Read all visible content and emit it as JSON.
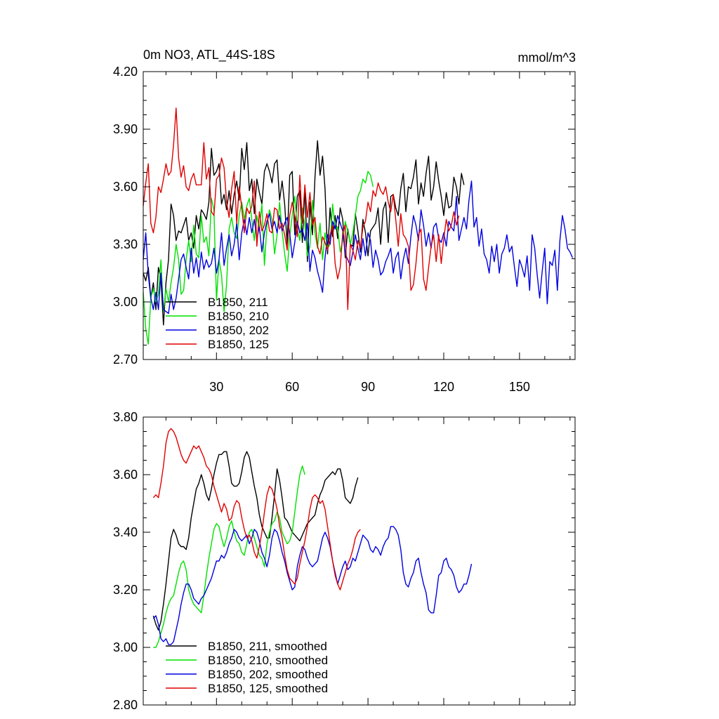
{
  "chart_data": [
    {
      "type": "line",
      "title": "0m NO3, ATL_44S-18S",
      "units": "mmol/m^3",
      "xlim": [
        1,
        172
      ],
      "ylim": [
        2.7,
        4.2
      ],
      "xticks": [
        30,
        60,
        90,
        120,
        150
      ],
      "yticks": [
        "2.70",
        "3.00",
        "3.30",
        "3.60",
        "3.90",
        "4.20"
      ],
      "legend_position": "bottom-left",
      "series": [
        {
          "name": "B1850, 211",
          "color": "#000000",
          "x_start": 1,
          "values": [
            3.15,
            3.11,
            3.18,
            3.02,
            3.1,
            2.96,
            3.18,
            3.12,
            2.88,
            3.1,
            3.22,
            3.51,
            3.45,
            3.32,
            3.37,
            3.36,
            3.4,
            3.44,
            3.32,
            3.36,
            3.28,
            3.45,
            3.38,
            3.48,
            3.46,
            3.43,
            3.52,
            3.8,
            3.66,
            3.68,
            3.72,
            3.51,
            3.56,
            3.48,
            3.58,
            3.46,
            3.56,
            3.63,
            3.53,
            3.8,
            3.69,
            3.83,
            3.58,
            3.64,
            3.46,
            3.64,
            3.57,
            3.51,
            3.68,
            3.72,
            3.68,
            3.62,
            3.72,
            3.74,
            3.53,
            3.63,
            3.51,
            3.3,
            3.66,
            3.68,
            3.35,
            3.55,
            3.58,
            3.31,
            3.6,
            3.21,
            3.52,
            3.35,
            3.65,
            3.84,
            3.66,
            3.76,
            3.59,
            3.25,
            3.49,
            3.34,
            3.45,
            3.33,
            3.49,
            3.43,
            3.23,
            3.38,
            3.3,
            3.29,
            3.46,
            3.37,
            3.26,
            3.43,
            3.36,
            3.24,
            3.37,
            3.39,
            3.41,
            3.49,
            3.3,
            3.48,
            3.52,
            3.31,
            3.55,
            3.56,
            3.49,
            3.45,
            3.59,
            3.67,
            3.47,
            3.6,
            3.59,
            3.65,
            3.74,
            3.51,
            3.62,
            3.55,
            3.67,
            3.76,
            3.53,
            3.6,
            3.73,
            3.63,
            3.55,
            3.45,
            3.57,
            3.49,
            3.5,
            3.65,
            3.6,
            3.51,
            3.67,
            3.61
          ]
        },
        {
          "name": "B1850, 210",
          "color": "#00e000",
          "x_start": 1,
          "values": [
            3.05,
            2.86,
            2.78,
            3.02,
            3.07,
            3.0,
            3.04,
            3.22,
            2.95,
            3.07,
            3.0,
            3.1,
            3.18,
            3.3,
            3.22,
            3.04,
            3.06,
            3.22,
            3.32,
            3.21,
            3.4,
            3.25,
            3.23,
            3.45,
            3.31,
            3.34,
            3.24,
            3.54,
            3.48,
            3.01,
            3.22,
            3.14,
            2.95,
            3.09,
            3.38,
            3.44,
            3.36,
            3.33,
            3.45,
            3.52,
            3.43,
            3.5,
            3.54,
            3.43,
            3.32,
            3.45,
            3.38,
            3.51,
            3.19,
            3.4,
            3.48,
            3.43,
            3.25,
            3.35,
            3.52,
            3.37,
            3.25,
            3.16,
            3.34,
            3.45,
            3.55,
            3.38,
            3.32,
            3.49,
            3.4,
            3.24,
            3.29,
            3.53,
            3.36,
            3.28,
            3.41,
            3.22,
            3.36,
            3.28,
            3.3,
            3.51,
            3.38,
            3.39,
            3.26,
            3.32,
            3.42,
            3.37,
            3.3,
            3.36,
            3.45,
            3.55,
            3.58,
            3.64,
            3.62,
            3.68,
            3.66,
            3.6
          ]
        },
        {
          "name": "B1850, 202",
          "color": "#0000e0",
          "x_start": 1,
          "values": [
            3.22,
            3.36,
            3.14,
            3.02,
            2.96,
            3.05,
            2.96,
            3.15,
            2.96,
            2.95,
            2.94,
            3.04,
            2.96,
            3.02,
            3.12,
            3.22,
            3.25,
            3.18,
            3.12,
            3.28,
            3.15,
            3.23,
            3.13,
            3.26,
            3.17,
            3.22,
            3.18,
            3.2,
            3.28,
            3.15,
            3.22,
            3.36,
            3.19,
            3.28,
            3.35,
            3.24,
            3.3,
            3.41,
            3.22,
            3.36,
            3.43,
            3.35,
            3.44,
            3.36,
            3.43,
            3.33,
            3.39,
            3.26,
            3.36,
            3.42,
            3.46,
            3.38,
            3.42,
            3.36,
            3.45,
            3.37,
            3.41,
            3.44,
            3.36,
            3.23,
            3.31,
            3.42,
            3.36,
            3.38,
            3.32,
            3.41,
            3.16,
            3.27,
            3.23,
            3.16,
            3.11,
            3.05,
            3.23,
            3.35,
            3.3,
            3.42,
            3.38,
            3.45,
            3.41,
            3.37,
            3.25,
            3.22,
            3.19,
            3.26,
            3.35,
            3.28,
            3.22,
            3.33,
            3.24,
            3.36,
            3.32,
            3.18,
            3.27,
            3.22,
            3.14,
            3.16,
            3.21,
            3.24,
            3.28,
            3.15,
            3.23,
            3.26,
            3.12,
            3.22,
            3.28,
            3.2,
            3.34,
            3.45,
            3.4,
            3.32,
            3.48,
            3.4,
            3.29,
            3.36,
            3.28,
            3.39,
            3.41,
            3.33,
            3.31,
            3.36,
            3.29,
            3.42,
            3.39,
            3.37,
            3.55,
            3.32,
            3.38,
            3.44,
            3.38,
            3.53,
            3.63,
            3.39,
            3.44,
            3.29,
            3.38,
            3.25,
            3.22,
            3.15,
            3.29,
            3.21,
            3.3,
            3.15,
            3.25,
            3.28,
            3.35,
            3.26,
            3.29,
            3.18,
            3.08,
            3.22,
            3.18,
            3.13,
            3.24,
            3.06,
            3.35,
            3.28,
            3.14,
            3.02,
            3.16,
            3.28,
            2.99,
            3.21,
            3.19,
            3.27,
            3.06,
            3.32,
            3.45,
            3.38,
            3.28,
            3.26,
            3.23
          ]
        },
        {
          "name": "B1850, 125",
          "color": "#e00000",
          "x_start": 1,
          "values": [
            3.5,
            3.62,
            3.72,
            3.41,
            3.36,
            3.44,
            3.6,
            3.57,
            3.64,
            3.72,
            3.66,
            3.68,
            3.82,
            4.01,
            3.75,
            3.65,
            3.71,
            3.6,
            3.58,
            3.64,
            3.67,
            3.61,
            3.61,
            3.61,
            3.83,
            3.64,
            3.7,
            3.47,
            3.45,
            3.64,
            3.66,
            3.75,
            3.7,
            3.52,
            3.44,
            3.59,
            3.68,
            3.41,
            3.6,
            3.49,
            3.36,
            3.49,
            3.46,
            3.5,
            3.63,
            3.29,
            3.47,
            3.37,
            3.4,
            3.46,
            3.37,
            3.36,
            3.49,
            3.48,
            3.38,
            3.41,
            3.35,
            3.27,
            3.45,
            3.52,
            3.44,
            3.34,
            3.66,
            3.41,
            3.61,
            3.44,
            3.57,
            3.4,
            3.44,
            3.29,
            3.25,
            3.34,
            3.31,
            3.27,
            3.35,
            3.4,
            3.2,
            3.12,
            3.18,
            3.36,
            3.4,
            2.96,
            3.3,
            3.27,
            3.22,
            3.32,
            3.28,
            3.39,
            3.42,
            3.52,
            3.47,
            3.58,
            3.55,
            3.62,
            3.58,
            3.56,
            3.6,
            3.52,
            3.47,
            3.56,
            3.43,
            3.29,
            3.46,
            3.35,
            3.33,
            3.29,
            3.06,
            3.09,
            3.2,
            3.35,
            3.38,
            3.12,
            3.06,
            3.18,
            3.29,
            3.35,
            3.21,
            3.35,
            3.2,
            3.33,
            3.43,
            3.37,
            3.4,
            3.47,
            3.4,
            3.45
          ]
        }
      ]
    },
    {
      "type": "line",
      "title": "",
      "xlim": [
        1,
        172
      ],
      "ylim": [
        2.8,
        3.8
      ],
      "yticks": [
        "2.80",
        "3.00",
        "3.20",
        "3.40",
        "3.60",
        "3.80"
      ],
      "legend_position": "bottom-left",
      "series": [
        {
          "name": "B1850, 211, smoothed",
          "color": "#000000",
          "x_start": 5,
          "values": [
            3.11,
            3.08,
            3.06,
            3.09,
            3.15,
            3.22,
            3.3,
            3.38,
            3.41,
            3.39,
            3.36,
            3.35,
            3.35,
            3.34,
            3.38,
            3.45,
            3.5,
            3.55,
            3.57,
            3.6,
            3.57,
            3.53,
            3.51,
            3.55,
            3.6,
            3.64,
            3.67,
            3.67,
            3.68,
            3.68,
            3.63,
            3.57,
            3.56,
            3.56,
            3.57,
            3.61,
            3.66,
            3.68,
            3.66,
            3.61,
            3.56,
            3.52,
            3.46,
            3.42,
            3.4,
            3.38,
            3.38,
            3.45,
            3.53,
            3.62,
            3.58,
            3.52,
            3.45,
            3.44,
            3.42,
            3.4,
            3.39,
            3.38,
            3.37,
            3.39,
            3.41,
            3.43,
            3.44,
            3.45,
            3.46,
            3.5,
            3.53,
            3.55,
            3.58,
            3.59,
            3.6,
            3.61,
            3.6,
            3.62,
            3.62,
            3.58,
            3.52,
            3.51,
            3.5,
            3.52,
            3.56,
            3.59
          ]
        },
        {
          "name": "B1850, 210, smoothed",
          "color": "#00e000",
          "x_start": 5,
          "values": [
            3.0,
            3.0,
            3.02,
            3.05,
            3.08,
            3.12,
            3.15,
            3.17,
            3.18,
            3.22,
            3.26,
            3.29,
            3.3,
            3.27,
            3.2,
            3.17,
            3.15,
            3.14,
            3.13,
            3.12,
            3.18,
            3.25,
            3.31,
            3.36,
            3.41,
            3.43,
            3.42,
            3.38,
            3.35,
            3.38,
            3.42,
            3.44,
            3.4,
            3.37,
            3.36,
            3.33,
            3.32,
            3.36,
            3.4,
            3.41,
            3.38,
            3.35,
            3.32,
            3.31,
            3.28,
            3.36,
            3.4,
            3.43,
            3.44,
            3.47,
            3.45,
            3.4,
            3.38,
            3.36,
            3.37,
            3.4,
            3.47,
            3.54,
            3.6,
            3.63,
            3.6
          ]
        },
        {
          "name": "B1850, 202, smoothed",
          "color": "#0000e0",
          "x_start": 5,
          "values": [
            3.1,
            3.11,
            3.08,
            3.03,
            3.02,
            3.03,
            3.01,
            3.01,
            3.02,
            3.06,
            3.1,
            3.15,
            3.19,
            3.22,
            3.22,
            3.2,
            3.17,
            3.16,
            3.15,
            3.17,
            3.18,
            3.2,
            3.22,
            3.24,
            3.27,
            3.3,
            3.3,
            3.32,
            3.31,
            3.33,
            3.36,
            3.38,
            3.41,
            3.4,
            3.38,
            3.37,
            3.38,
            3.39,
            3.36,
            3.38,
            3.41,
            3.4,
            3.37,
            3.33,
            3.31,
            3.28,
            3.32,
            3.38,
            3.41,
            3.4,
            3.37,
            3.33,
            3.3,
            3.26,
            3.23,
            3.2,
            3.21,
            3.28,
            3.32,
            3.35,
            3.34,
            3.31,
            3.29,
            3.28,
            3.29,
            3.3,
            3.34,
            3.38,
            3.4,
            3.38,
            3.35,
            3.3,
            3.26,
            3.22,
            3.25,
            3.28,
            3.3,
            3.27,
            3.28,
            3.31,
            3.3,
            3.33,
            3.36,
            3.39,
            3.38,
            3.37,
            3.34,
            3.33,
            3.35,
            3.34,
            3.32,
            3.35,
            3.37,
            3.38,
            3.42,
            3.42,
            3.41,
            3.39,
            3.34,
            3.26,
            3.22,
            3.21,
            3.24,
            3.26,
            3.3,
            3.31,
            3.26,
            3.22,
            3.19,
            3.13,
            3.12,
            3.12,
            3.18,
            3.25,
            3.26,
            3.3,
            3.31,
            3.28,
            3.27,
            3.25,
            3.21,
            3.19,
            3.2,
            3.22,
            3.22,
            3.25,
            3.29
          ]
        },
        {
          "name": "B1850, 125, smoothed",
          "color": "#e00000",
          "x_start": 5,
          "values": [
            3.52,
            3.53,
            3.52,
            3.57,
            3.63,
            3.71,
            3.75,
            3.76,
            3.75,
            3.73,
            3.7,
            3.67,
            3.65,
            3.64,
            3.66,
            3.68,
            3.7,
            3.69,
            3.7,
            3.68,
            3.66,
            3.63,
            3.62,
            3.6,
            3.56,
            3.53,
            3.5,
            3.47,
            3.5,
            3.48,
            3.44,
            3.45,
            3.49,
            3.51,
            3.5,
            3.45,
            3.41,
            3.38,
            3.39,
            3.37,
            3.33,
            3.31,
            3.35,
            3.4,
            3.47,
            3.53,
            3.56,
            3.55,
            3.52,
            3.48,
            3.42,
            3.38,
            3.32,
            3.27,
            3.24,
            3.23,
            3.22,
            3.24,
            3.29,
            3.33,
            3.37,
            3.42,
            3.48,
            3.52,
            3.53,
            3.52,
            3.5,
            3.51,
            3.48,
            3.42,
            3.36,
            3.3,
            3.25,
            3.22,
            3.2,
            3.23,
            3.26,
            3.29,
            3.31,
            3.34,
            3.38,
            3.4,
            3.41
          ]
        }
      ]
    }
  ]
}
